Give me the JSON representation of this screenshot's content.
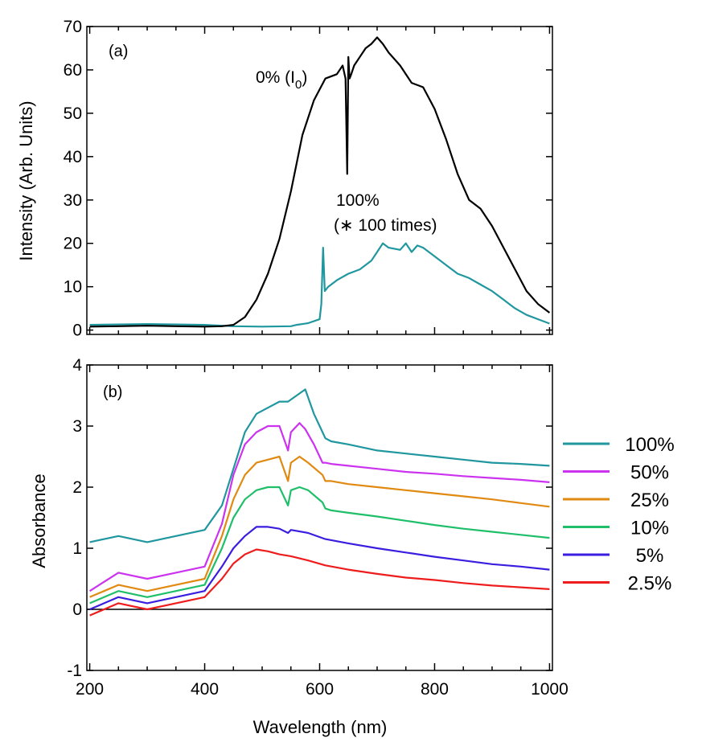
{
  "chart_data": [
    {
      "type": "line",
      "panel_label": "(a)",
      "xlabel": "",
      "ylabel": "Intensity (Arb. Units)",
      "xlim": [
        195,
        1005
      ],
      "ylim": [
        -1,
        70
      ],
      "xticks": [
        200,
        400,
        600,
        800,
        1000
      ],
      "yticks": [
        0,
        10,
        20,
        30,
        40,
        50,
        60,
        70
      ],
      "annotations": [
        {
          "text": "0% (I",
          "sub": "0",
          "close": ")",
          "series": "0% (I0)"
        },
        {
          "text": "100%",
          "series": "100%"
        },
        {
          "text": "(∗ 100 times)",
          "series": "100%"
        }
      ],
      "series": [
        {
          "name": "0% (I0)",
          "color": "#000000",
          "x": [
            200,
            250,
            300,
            350,
            400,
            430,
            450,
            470,
            490,
            510,
            530,
            550,
            570,
            590,
            610,
            630,
            640,
            645,
            648,
            650,
            652,
            655,
            660,
            670,
            680,
            690,
            700,
            710,
            720,
            740,
            760,
            780,
            800,
            820,
            840,
            860,
            880,
            900,
            920,
            940,
            960,
            980,
            1000
          ],
          "y": [
            0.8,
            0.9,
            1.0,
            0.9,
            0.8,
            0.9,
            1.2,
            3.0,
            7.0,
            13.0,
            21.0,
            32.0,
            45.0,
            53.0,
            58.0,
            59.0,
            61.0,
            58.0,
            36.0,
            63.0,
            58.0,
            59.0,
            61.0,
            63.0,
            65.0,
            66.0,
            67.5,
            66.0,
            64.0,
            61.0,
            57.0,
            56.0,
            51.0,
            44.0,
            36.0,
            30.0,
            28.0,
            24.0,
            19.0,
            14.0,
            9.0,
            6.0,
            4.0
          ]
        },
        {
          "name": "100%",
          "color": "#20979f",
          "x": [
            200,
            250,
            300,
            350,
            400,
            450,
            500,
            550,
            560,
            580,
            600,
            603,
            606,
            609,
            615,
            630,
            650,
            670,
            690,
            700,
            710,
            720,
            740,
            750,
            760,
            770,
            780,
            800,
            820,
            840,
            860,
            880,
            900,
            920,
            940,
            960,
            980,
            1000
          ],
          "y": [
            1.2,
            1.3,
            1.4,
            1.3,
            1.2,
            0.9,
            0.8,
            0.9,
            1.2,
            1.6,
            2.5,
            6.0,
            19.0,
            9.0,
            10.0,
            11.5,
            13.0,
            14.0,
            16.0,
            18.0,
            20.0,
            19.0,
            18.5,
            20.0,
            18.0,
            19.5,
            19.0,
            17.0,
            15.0,
            13.0,
            12.0,
            10.5,
            9.0,
            7.0,
            5.0,
            3.5,
            2.5,
            1.5
          ]
        }
      ]
    },
    {
      "type": "line",
      "panel_label": "(b)",
      "xlabel": "Wavelength (nm)",
      "ylabel": "Absorbance",
      "xlim": [
        195,
        1005
      ],
      "ylim": [
        -1,
        4
      ],
      "xticks": [
        200,
        400,
        600,
        800,
        1000
      ],
      "yticks": [
        -1,
        0,
        1,
        2,
        3,
        4
      ],
      "zero_line": true,
      "legend_position": "right",
      "series": [
        {
          "name": "100%",
          "color": "#20979f",
          "x": [
            200,
            250,
            300,
            350,
            400,
            430,
            450,
            470,
            490,
            510,
            530,
            545,
            560,
            575,
            590,
            605,
            610,
            620,
            650,
            700,
            750,
            800,
            850,
            900,
            950,
            1000
          ],
          "y": [
            1.1,
            1.2,
            1.1,
            1.2,
            1.3,
            1.7,
            2.3,
            2.9,
            3.2,
            3.3,
            3.4,
            3.4,
            3.5,
            3.6,
            3.2,
            2.9,
            2.8,
            2.75,
            2.7,
            2.6,
            2.55,
            2.5,
            2.45,
            2.4,
            2.38,
            2.35
          ]
        },
        {
          "name": "50%",
          "color": "#cc33ee",
          "x": [
            200,
            250,
            300,
            350,
            400,
            430,
            450,
            470,
            490,
            510,
            530,
            545,
            550,
            565,
            575,
            590,
            605,
            610,
            620,
            650,
            700,
            750,
            800,
            850,
            900,
            950,
            1000
          ],
          "y": [
            0.3,
            0.6,
            0.5,
            0.6,
            0.7,
            1.4,
            2.2,
            2.7,
            2.9,
            3.0,
            3.0,
            2.6,
            2.9,
            3.05,
            2.95,
            2.7,
            2.4,
            2.4,
            2.38,
            2.35,
            2.3,
            2.25,
            2.22,
            2.18,
            2.15,
            2.12,
            2.08
          ]
        },
        {
          "name": "25%",
          "color": "#e08a12",
          "x": [
            200,
            250,
            300,
            350,
            400,
            430,
            450,
            470,
            490,
            510,
            530,
            545,
            550,
            565,
            580,
            605,
            610,
            620,
            650,
            700,
            750,
            800,
            850,
            900,
            950,
            1000
          ],
          "y": [
            0.2,
            0.4,
            0.3,
            0.4,
            0.5,
            1.2,
            1.8,
            2.2,
            2.4,
            2.45,
            2.5,
            2.1,
            2.4,
            2.5,
            2.4,
            2.2,
            2.1,
            2.1,
            2.05,
            2.0,
            1.95,
            1.9,
            1.85,
            1.8,
            1.74,
            1.68
          ]
        },
        {
          "name": "10%",
          "color": "#1fbf6a",
          "x": [
            200,
            250,
            300,
            350,
            400,
            430,
            450,
            470,
            490,
            510,
            530,
            545,
            550,
            565,
            580,
            605,
            610,
            620,
            650,
            700,
            750,
            800,
            850,
            900,
            950,
            1000
          ],
          "y": [
            0.1,
            0.3,
            0.2,
            0.3,
            0.4,
            1.0,
            1.5,
            1.8,
            1.95,
            2.0,
            2.0,
            1.7,
            1.95,
            2.0,
            1.95,
            1.75,
            1.65,
            1.62,
            1.58,
            1.52,
            1.45,
            1.38,
            1.32,
            1.27,
            1.22,
            1.17
          ]
        },
        {
          "name": "5%",
          "color": "#3a1ee0",
          "x": [
            200,
            250,
            300,
            350,
            400,
            430,
            450,
            470,
            490,
            510,
            530,
            545,
            550,
            580,
            610,
            650,
            700,
            750,
            800,
            850,
            900,
            950,
            1000
          ],
          "y": [
            0.0,
            0.2,
            0.1,
            0.2,
            0.3,
            0.7,
            1.0,
            1.2,
            1.35,
            1.35,
            1.32,
            1.25,
            1.3,
            1.25,
            1.15,
            1.08,
            1.0,
            0.93,
            0.86,
            0.8,
            0.74,
            0.7,
            0.65
          ]
        },
        {
          "name": "2.5%",
          "color": "#ee1c1c",
          "x": [
            200,
            250,
            300,
            350,
            400,
            430,
            450,
            470,
            490,
            510,
            530,
            550,
            580,
            610,
            650,
            700,
            750,
            800,
            850,
            900,
            950,
            1000
          ],
          "y": [
            -0.1,
            0.1,
            0.0,
            0.1,
            0.2,
            0.5,
            0.75,
            0.9,
            0.98,
            0.95,
            0.9,
            0.87,
            0.8,
            0.72,
            0.65,
            0.58,
            0.52,
            0.48,
            0.43,
            0.39,
            0.36,
            0.33
          ]
        }
      ]
    }
  ]
}
